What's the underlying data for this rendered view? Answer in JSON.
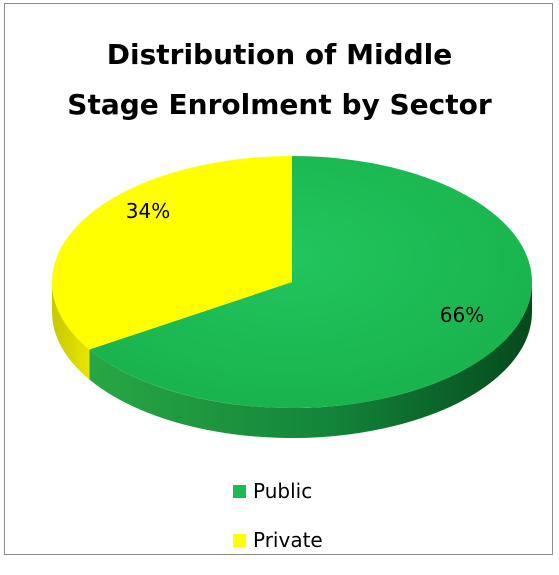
{
  "chart_data": {
    "type": "pie",
    "title": "Distribution of Middle Stage Enrolment by Sector",
    "title_lines": [
      "Distribution of Middle",
      "Stage Enrolment by Sector"
    ],
    "slices": [
      {
        "label": "Public",
        "value": 66,
        "data_label": "66%",
        "color": "#1db954"
      },
      {
        "label": "Private",
        "value": 34,
        "data_label": "34%",
        "color": "#ffff00"
      }
    ],
    "style": "3d",
    "legend_position": "bottom"
  }
}
